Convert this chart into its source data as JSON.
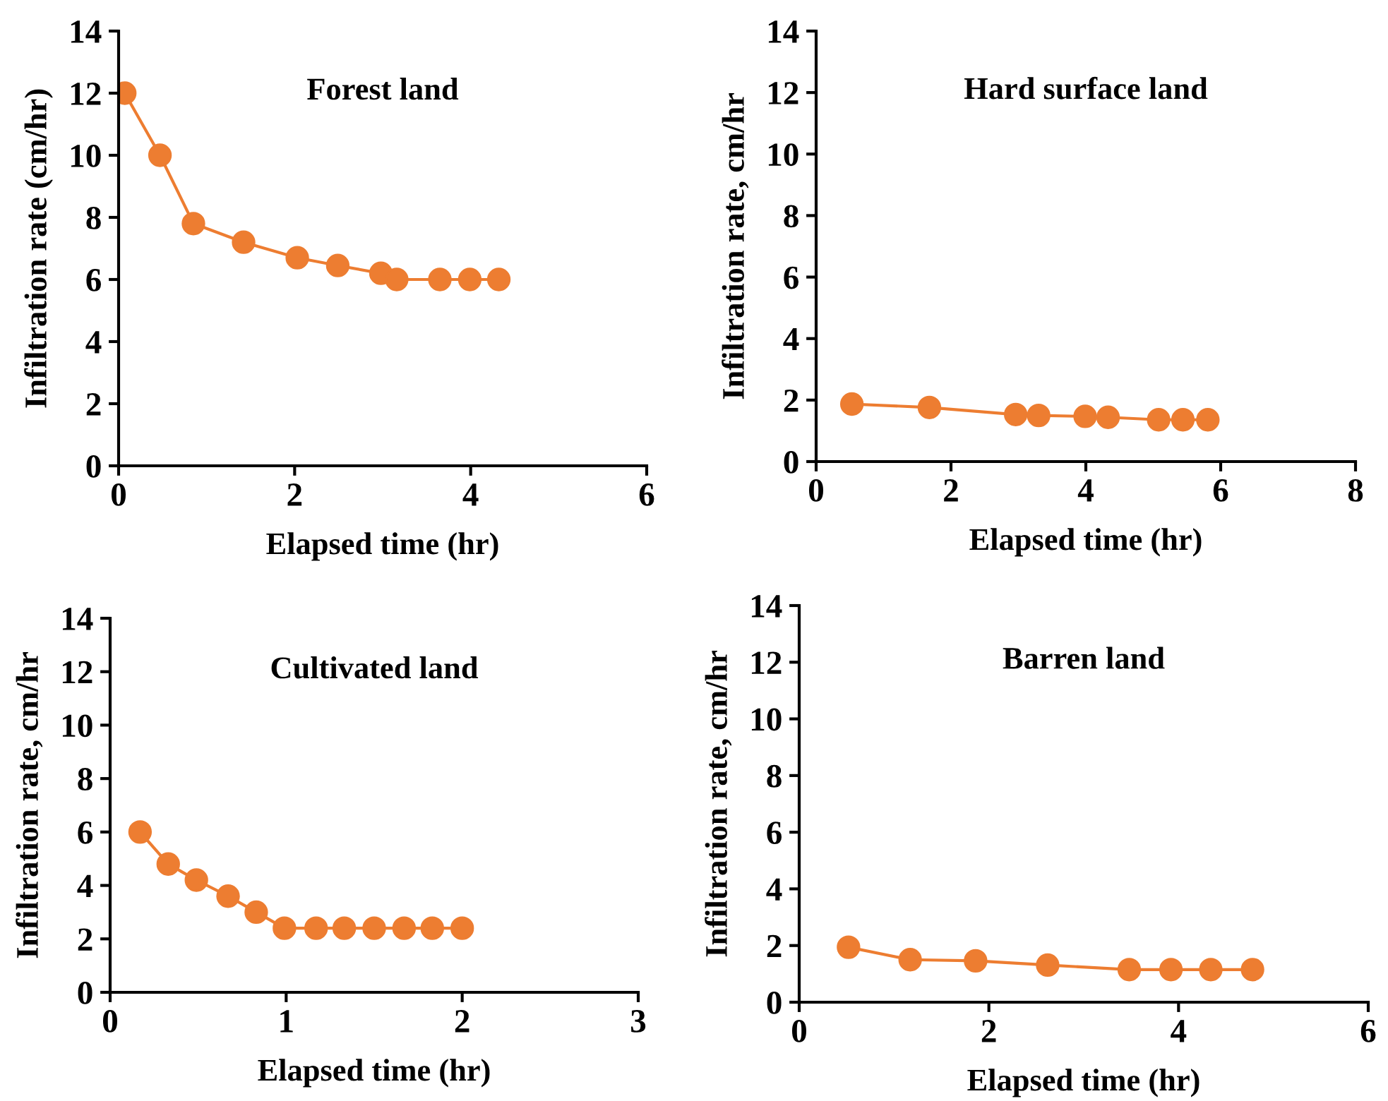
{
  "chart_data": [
    {
      "type": "line",
      "title": "Forest land",
      "xlabel": "Elapsed time (hr)",
      "ylabel": "Infiltration rate (cm/hr)",
      "xlim": [
        0,
        6
      ],
      "xticks": [
        0,
        2,
        4,
        6
      ],
      "ylim": [
        0,
        14
      ],
      "yticks": [
        0,
        2,
        4,
        6,
        8,
        10,
        12,
        14
      ],
      "marker": "circle",
      "line_style": "solid",
      "series": [
        {
          "color": "#ed7d31",
          "x": [
            0.07,
            0.47,
            0.85,
            1.42,
            2.03,
            2.49,
            2.98,
            3.16,
            3.65,
            3.99,
            4.32
          ],
          "values": [
            12.0,
            10.0,
            7.8,
            7.2,
            6.7,
            6.45,
            6.2,
            6.0,
            6.0,
            6.0,
            6.0
          ]
        }
      ]
    },
    {
      "type": "line",
      "title": "Hard surface land",
      "xlabel": "Elapsed time (hr)",
      "ylabel": "Infiltration rate, cm/hr",
      "xlim": [
        0,
        8
      ],
      "xticks": [
        0,
        2,
        4,
        6,
        8
      ],
      "ylim": [
        0,
        14
      ],
      "yticks": [
        0,
        2,
        4,
        6,
        8,
        10,
        12,
        14
      ],
      "marker": "circle",
      "line_style": "solid",
      "series": [
        {
          "color": "#ed7d31",
          "x": [
            0.53,
            1.68,
            2.96,
            3.3,
            3.99,
            4.33,
            5.08,
            5.44,
            5.81
          ],
          "values": [
            1.87,
            1.76,
            1.53,
            1.5,
            1.47,
            1.44,
            1.36,
            1.36,
            1.36
          ]
        }
      ]
    },
    {
      "type": "line",
      "title": "Cultivated land",
      "xlabel": "Elapsed time (hr)",
      "ylabel": "Infiltration rate, cm/hr",
      "xlim": [
        0,
        3
      ],
      "xticks": [
        0,
        1,
        2,
        3
      ],
      "ylim": [
        0,
        14
      ],
      "yticks": [
        0,
        2,
        4,
        6,
        8,
        10,
        12,
        14
      ],
      "marker": "circle",
      "line_style": "solid",
      "series": [
        {
          "color": "#ed7d31",
          "x": [
            0.17,
            0.33,
            0.49,
            0.67,
            0.83,
            0.99,
            1.17,
            1.33,
            1.5,
            1.67,
            1.83,
            2.0
          ],
          "values": [
            6.0,
            4.8,
            4.2,
            3.6,
            3.0,
            2.4,
            2.4,
            2.4,
            2.4,
            2.4,
            2.4,
            2.4
          ]
        }
      ]
    },
    {
      "type": "line",
      "title": "Barren land",
      "xlabel": "Elapsed time (hr)",
      "ylabel": "Infiltration rate, cm/hr",
      "xlim": [
        0,
        6
      ],
      "xticks": [
        0,
        2,
        4,
        6
      ],
      "ylim": [
        0,
        14
      ],
      "yticks": [
        0,
        2,
        4,
        6,
        8,
        10,
        12,
        14
      ],
      "marker": "circle",
      "line_style": "solid",
      "series": [
        {
          "color": "#ed7d31",
          "x": [
            0.52,
            1.17,
            1.86,
            2.62,
            3.48,
            3.92,
            4.34,
            4.78
          ],
          "values": [
            1.94,
            1.5,
            1.46,
            1.31,
            1.15,
            1.15,
            1.15,
            1.15
          ]
        }
      ]
    }
  ]
}
